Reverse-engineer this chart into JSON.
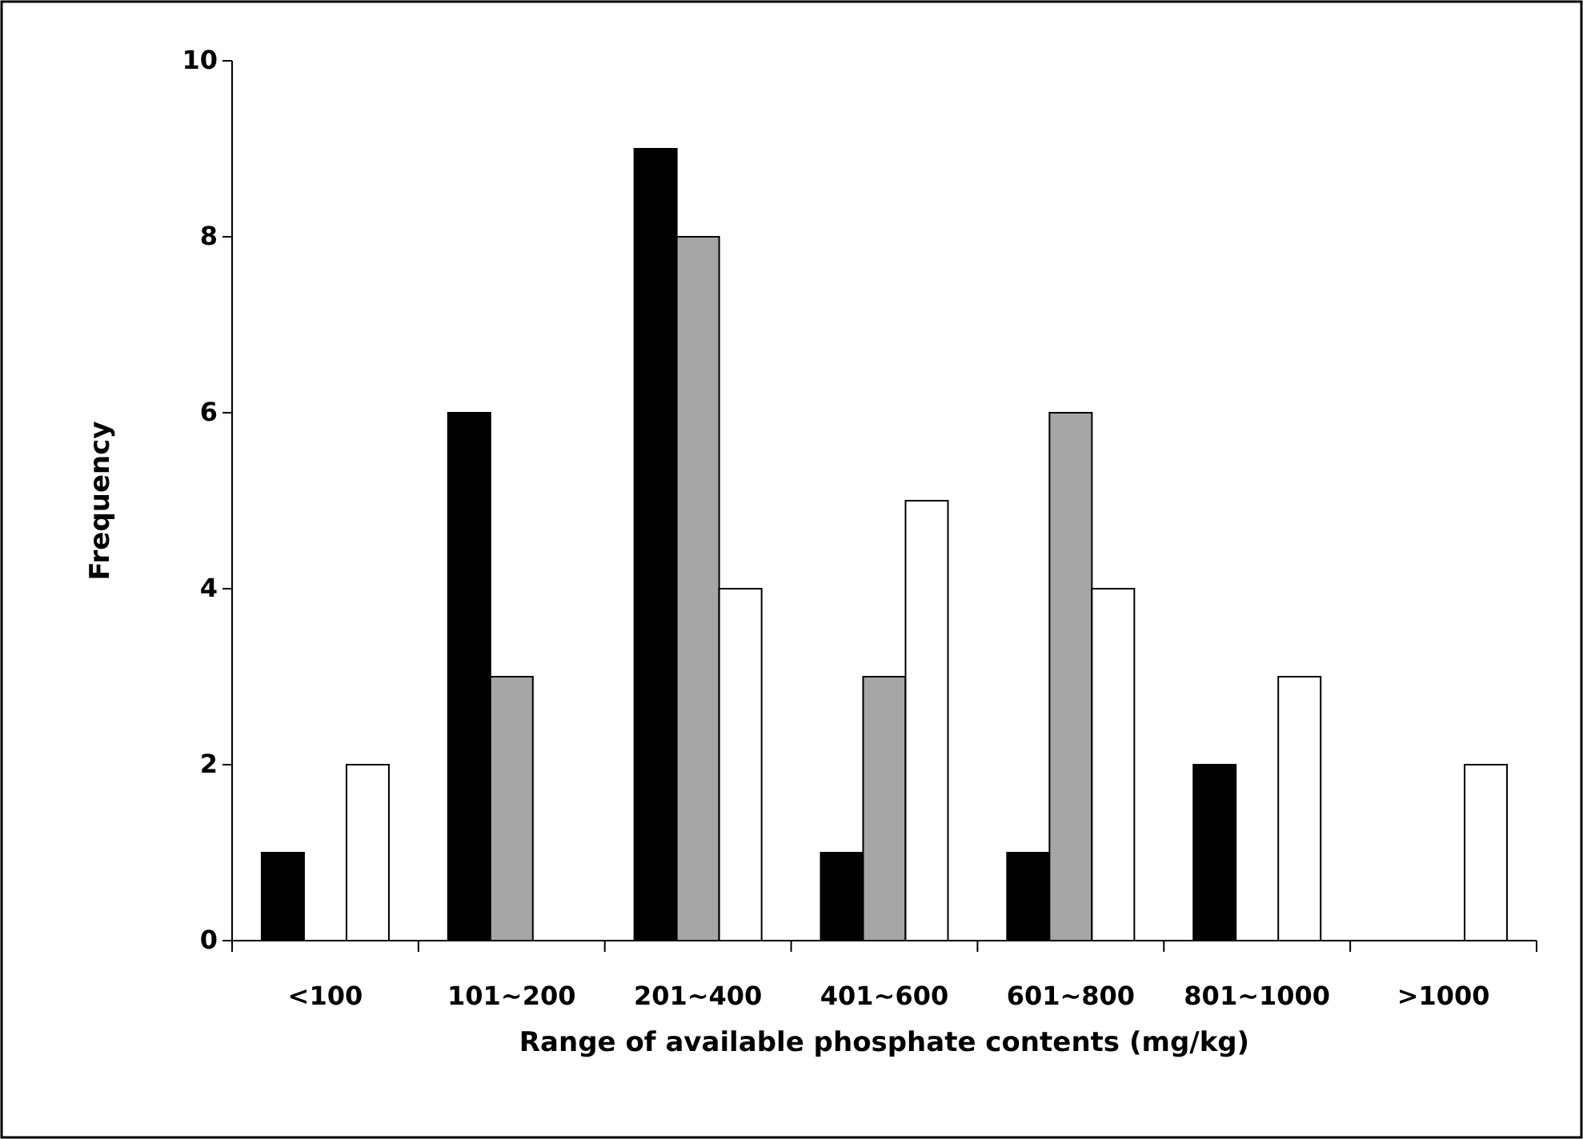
{
  "chart_data": {
    "type": "bar",
    "xlabel": "Range of available phosphate contents (mg/kg)",
    "ylabel": "Frequency",
    "categories": [
      "<100",
      "101~200",
      "201~400",
      "401~600",
      "601~800",
      "801~1000",
      ">1000"
    ],
    "series": [
      {
        "color": "#000000",
        "values": [
          1,
          6,
          9,
          1,
          1,
          2,
          0
        ]
      },
      {
        "color": "#a6a6a6",
        "values": [
          0,
          3,
          8,
          3,
          6,
          0,
          0
        ]
      },
      {
        "color": "#ffffff",
        "values": [
          2,
          0,
          4,
          5,
          4,
          3,
          2
        ]
      }
    ],
    "ylim": [
      0,
      10
    ],
    "yticks": [
      0,
      2,
      4,
      6,
      8,
      10
    ],
    "grid": false
  }
}
